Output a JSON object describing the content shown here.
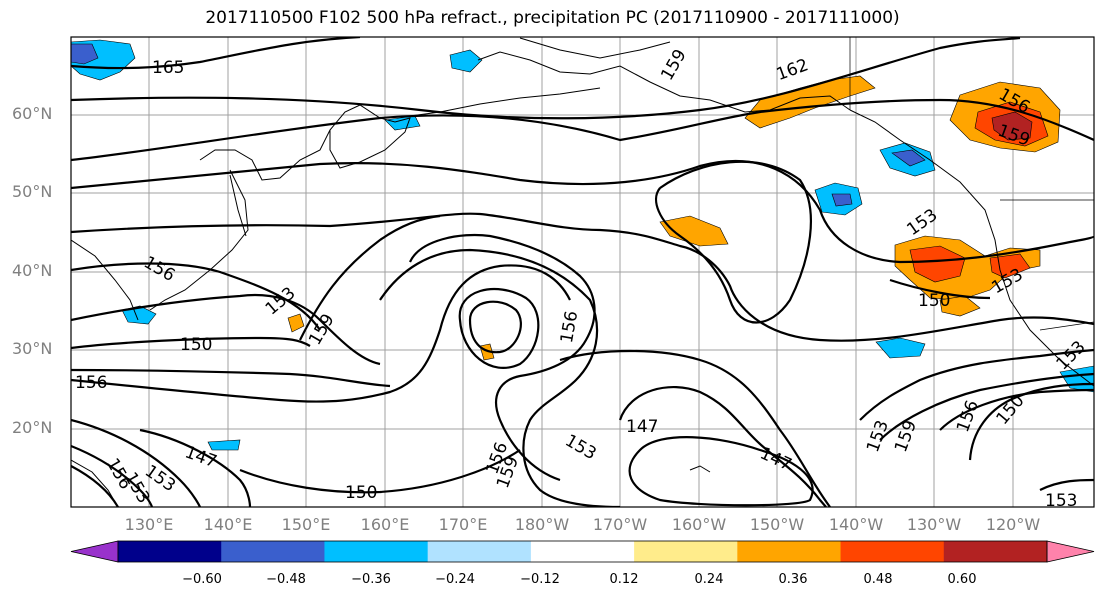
{
  "title": "2017110500 F102 500 hPa refract., precipitation PC (2017110900 - 2017111000)",
  "lat_labels": [
    "60°N",
    "50°N",
    "40°N",
    "30°N",
    "20°N"
  ],
  "lon_labels": [
    "130°E",
    "140°E",
    "150°E",
    "160°E",
    "170°E",
    "180°W",
    "170°W",
    "160°W",
    "150°W",
    "140°W",
    "130°W",
    "120°W"
  ],
  "colorbar": {
    "ticks": [
      "−0.60",
      "−0.48",
      "−0.36",
      "−0.24",
      "−0.12",
      "0.12",
      "0.24",
      "0.36",
      "0.48",
      "0.60"
    ],
    "colors": [
      "#9932cc",
      "#00008b",
      "#3a5fcd",
      "#00bfff",
      "#b0e2ff",
      "#ffffff",
      "#ffec8b",
      "#ffa500",
      "#ff4500",
      "#b22222",
      "#ff82ab"
    ]
  },
  "contour_labels": [
    "165",
    "162",
    "159",
    "156",
    "159",
    "156",
    "153",
    "159",
    "150",
    "156",
    "153",
    "156",
    "147",
    "147",
    "153",
    "159",
    "156",
    "153",
    "150",
    "159",
    "156",
    "153",
    "150",
    "153",
    "147",
    "153",
    "150",
    "153",
    "150",
    "156",
    "153"
  ],
  "map": {
    "lat_range": [
      10,
      70
    ],
    "lon_range_east": [
      120,
      253
    ],
    "grid": true,
    "field": "500 hPa refractivity contours with precipitation principal component shading"
  }
}
